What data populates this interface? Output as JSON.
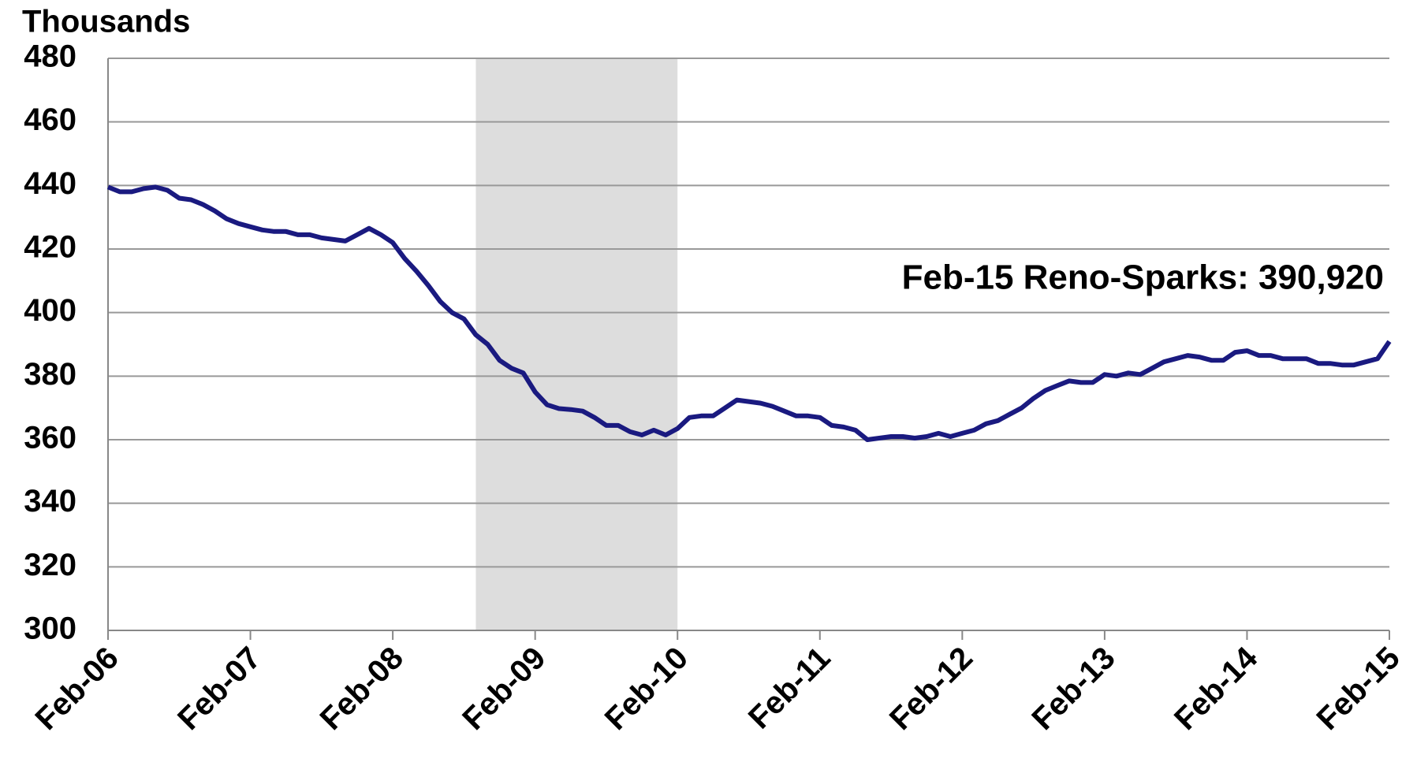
{
  "chart_data": {
    "type": "line",
    "y_axis_label": "Thousands",
    "annotation": "Feb-15 Reno-Sparks: 390,920",
    "categories": [
      "Feb-06",
      null,
      null,
      null,
      null,
      null,
      null,
      null,
      null,
      null,
      null,
      null,
      "Feb-07",
      null,
      null,
      null,
      null,
      null,
      null,
      null,
      null,
      null,
      null,
      null,
      "Feb-08",
      null,
      null,
      null,
      null,
      null,
      null,
      null,
      null,
      null,
      null,
      null,
      "Feb-09",
      null,
      null,
      null,
      null,
      null,
      null,
      null,
      null,
      null,
      null,
      null,
      "Feb-10",
      null,
      null,
      null,
      null,
      null,
      null,
      null,
      null,
      null,
      null,
      null,
      "Feb-11",
      null,
      null,
      null,
      null,
      null,
      null,
      null,
      null,
      null,
      null,
      null,
      "Feb-12",
      null,
      null,
      null,
      null,
      null,
      null,
      null,
      null,
      null,
      null,
      null,
      "Feb-13",
      null,
      null,
      null,
      null,
      null,
      null,
      null,
      null,
      null,
      null,
      null,
      "Feb-14",
      null,
      null,
      null,
      null,
      null,
      null,
      null,
      null,
      null,
      null,
      null,
      "Feb-15"
    ],
    "series": [
      {
        "name": "Reno-Sparks",
        "color": "#1a1a80",
        "values": [
          439.5,
          438,
          438,
          439,
          439.5,
          438.5,
          436,
          435.5,
          434,
          432,
          429.5,
          428,
          427,
          426,
          425.5,
          425.5,
          424.5,
          424.5,
          423.5,
          423,
          422.5,
          424.5,
          426.5,
          424.5,
          422,
          417,
          413,
          408.5,
          403.5,
          400,
          398,
          393,
          390,
          385,
          382.5,
          381,
          375,
          371,
          369.8,
          369.5,
          369,
          367,
          364.5,
          364.5,
          362.5,
          361.5,
          363,
          361.5,
          363.5,
          367,
          367.5,
          367.5,
          370,
          372.5,
          372,
          371.5,
          370.5,
          369,
          367.5,
          367.5,
          367,
          364.5,
          364,
          363,
          360,
          360.5,
          361,
          361,
          360.5,
          361,
          362,
          361,
          362,
          363,
          365,
          366,
          368,
          370,
          373,
          375.5,
          377,
          378.5,
          378,
          378,
          380.5,
          380,
          381,
          380.5,
          382.5,
          384.5,
          385.5,
          386.5,
          386,
          385,
          385,
          387.5,
          388,
          386.5,
          386.5,
          385.5,
          385.5,
          385.5,
          384,
          384,
          383.5,
          383.5,
          384.5,
          385.5,
          390.92
        ]
      }
    ],
    "shade": [
      31,
      48
    ],
    "shade_color": "#dddddd",
    "ylim": [
      300,
      480
    ],
    "yticks": [
      300,
      320,
      340,
      360,
      380,
      400,
      420,
      440,
      460,
      480
    ],
    "grid": true
  }
}
